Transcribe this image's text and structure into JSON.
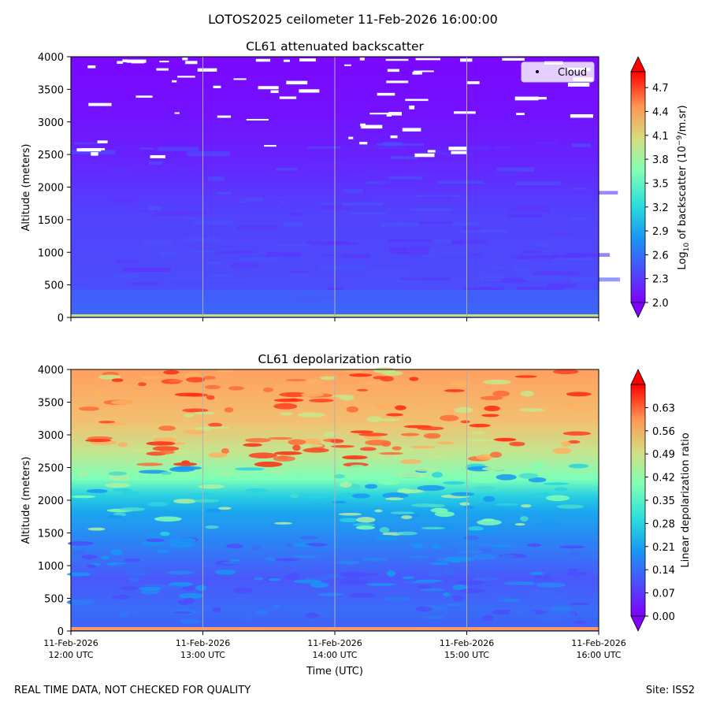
{
  "figure": {
    "suptitle": "LOTOS2025 ceilometer 11-Feb-2026 16:00:00",
    "footer_left": "REAL TIME DATA, NOT CHECKED FOR QUALITY",
    "footer_right": "Site: ISS2"
  },
  "chart_data": [
    {
      "type": "heatmap",
      "title": "CL61 attenuated backscatter",
      "ylabel": "Altitude (meters)",
      "xlabel": "",
      "ylim": [
        0,
        4000
      ],
      "y_ticks": [
        "0",
        "500",
        "1000",
        "1500",
        "2000",
        "2500",
        "3000",
        "3500",
        "4000"
      ],
      "x_ticks": [],
      "grid": "vertical lines at each hour",
      "legend": {
        "placement": "top-right",
        "entries": [
          "Cloud"
        ]
      },
      "colorbar": {
        "label_prefix": "Log",
        "label_sub": "10",
        "label_mid": " of backscatter (10",
        "label_sup": "−9",
        "label_suffix": "/m.sr)",
        "range": [
          2.0,
          4.9
        ],
        "extend": "both",
        "colormap": "rainbow",
        "ticks": [
          "2.0",
          "2.3",
          "2.6",
          "2.9",
          "3.2",
          "3.5",
          "3.8",
          "4.1",
          "4.4",
          "4.7"
        ]
      }
    },
    {
      "type": "heatmap",
      "title": "CL61 depolarization ratio",
      "ylabel": "Altitude (meters)",
      "xlabel": "Time (UTC)",
      "ylim": [
        0,
        4000
      ],
      "y_ticks": [
        "0",
        "500",
        "1000",
        "1500",
        "2000",
        "2500",
        "3000",
        "3500",
        "4000"
      ],
      "x_ticks": [
        {
          "date": "11-Feb-2026",
          "time": "12:00 UTC"
        },
        {
          "date": "11-Feb-2026",
          "time": "13:00 UTC"
        },
        {
          "date": "11-Feb-2026",
          "time": "14:00 UTC"
        },
        {
          "date": "11-Feb-2026",
          "time": "15:00 UTC"
        },
        {
          "date": "11-Feb-2026",
          "time": "16:00 UTC"
        }
      ],
      "grid": "vertical lines at each hour",
      "colorbar": {
        "label": "Linear depolarization ratio",
        "range": [
          0.0,
          0.7
        ],
        "extend": "both",
        "colormap": "rainbow",
        "ticks": [
          "0.00",
          "0.07",
          "0.14",
          "0.21",
          "0.28",
          "0.35",
          "0.42",
          "0.49",
          "0.56",
          "0.63"
        ]
      }
    }
  ]
}
